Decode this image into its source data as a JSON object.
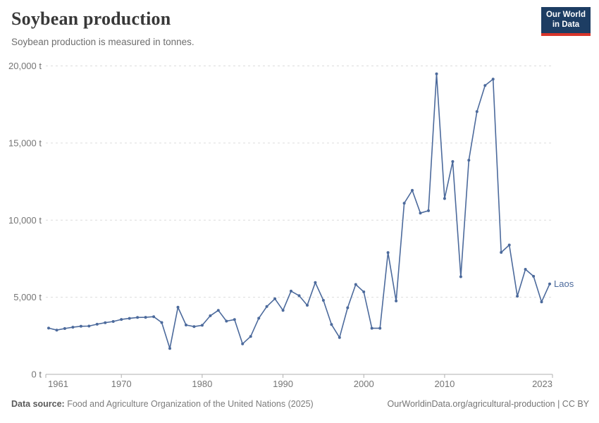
{
  "header": {
    "title": "Soybean production",
    "subtitle": "Soybean production is measured in tonnes."
  },
  "logo": {
    "line1": "Our World",
    "line2": "in Data"
  },
  "footer": {
    "source_label": "Data source:",
    "source_text": " Food and Agriculture Organization of the United Nations (2025)",
    "credit": "OurWorldinData.org/agricultural-production | CC BY"
  },
  "colors": {
    "line": "#4c6a9c",
    "grid": "#dcdcdc",
    "axis": "#b0b0b0",
    "tick_label": "#757575",
    "logo_bg": "#1d3d63",
    "logo_red": "#d8352a"
  },
  "chart_data": {
    "type": "line",
    "title": "Soybean production",
    "ylabel": "",
    "xlabel": "",
    "unit": "t",
    "grid": "horizontal-dashed",
    "legend_position": "end-of-line-label",
    "xlim": [
      1961,
      2023
    ],
    "ylim": [
      0,
      20000
    ],
    "x_ticks": [
      1961,
      1970,
      1980,
      1990,
      2000,
      2010,
      2023
    ],
    "y_ticks": [
      0,
      5000,
      10000,
      15000,
      20000
    ],
    "series": [
      {
        "name": "Laos",
        "x": [
          1961,
          1962,
          1963,
          1964,
          1965,
          1966,
          1967,
          1968,
          1969,
          1970,
          1971,
          1972,
          1973,
          1974,
          1975,
          1976,
          1977,
          1978,
          1979,
          1980,
          1981,
          1982,
          1983,
          1984,
          1985,
          1986,
          1987,
          1988,
          1989,
          1990,
          1991,
          1992,
          1993,
          1994,
          1995,
          1996,
          1997,
          1998,
          1999,
          2000,
          2001,
          2002,
          2003,
          2004,
          2005,
          2006,
          2007,
          2008,
          2009,
          2010,
          2011,
          2012,
          2013,
          2014,
          2015,
          2016,
          2017,
          2018,
          2019,
          2020,
          2021,
          2022,
          2023
        ],
        "values": [
          3000,
          2870,
          2970,
          3060,
          3120,
          3130,
          3250,
          3350,
          3430,
          3560,
          3630,
          3690,
          3700,
          3740,
          3360,
          1680,
          4350,
          3200,
          3100,
          3180,
          3800,
          4150,
          3450,
          3550,
          1980,
          2460,
          3640,
          4400,
          4900,
          4150,
          5400,
          5100,
          4480,
          5950,
          4800,
          3230,
          2390,
          4320,
          5830,
          5350,
          2990,
          2990,
          7900,
          4760,
          11100,
          11930,
          10460,
          10610,
          19490,
          11400,
          13800,
          6330,
          13890,
          17040,
          18730,
          19140,
          7910,
          8390,
          5070,
          6810,
          6360,
          4700,
          5860
        ]
      }
    ]
  }
}
